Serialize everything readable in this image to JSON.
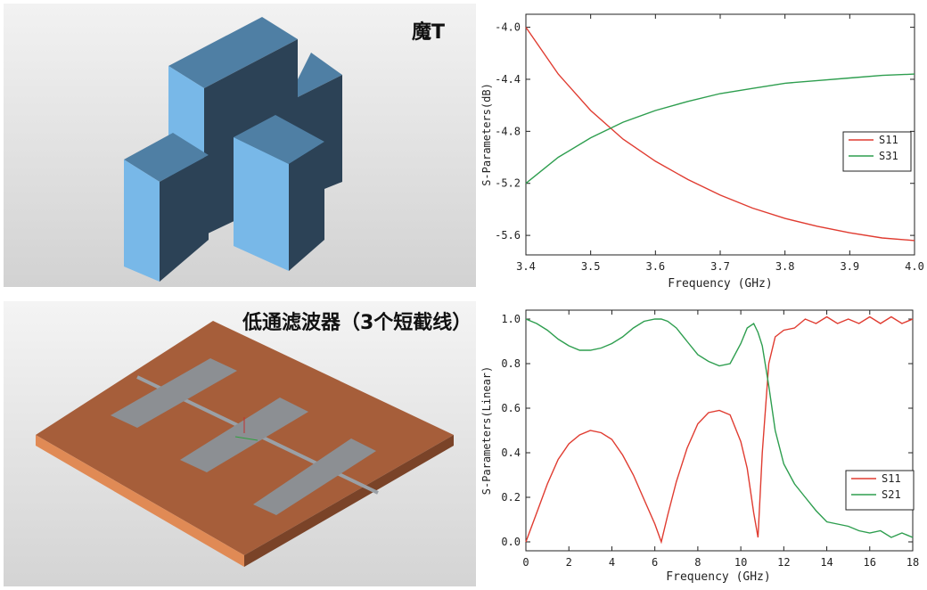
{
  "panels": {
    "magic_t": {
      "title": "魔T"
    },
    "lowpass": {
      "title": "低通滤波器（3个短截线）"
    }
  },
  "chart_data": [
    {
      "type": "line",
      "xlabel": "Frequency (GHz)",
      "ylabel": "S-Parameters(dB)",
      "xlim": [
        3.4,
        4.0
      ],
      "ylim": [
        -5.75,
        -3.9
      ],
      "xticks": [
        "3.4",
        "3.5",
        "3.6",
        "3.7",
        "3.8",
        "3.9",
        "4.0"
      ],
      "yticks": [
        "-4.0",
        "-4.4",
        "-4.8",
        "-5.2",
        "-5.6"
      ],
      "xtick_values": [
        3.4,
        3.5,
        3.6,
        3.7,
        3.8,
        3.9,
        4.0
      ],
      "ytick_values": [
        -4.0,
        -4.4,
        -4.8,
        -5.2,
        -5.6
      ],
      "grid": false,
      "legend_position": "right",
      "series": [
        {
          "name": "S11",
          "color": "#e03c31",
          "x": [
            3.4,
            3.45,
            3.5,
            3.55,
            3.6,
            3.65,
            3.7,
            3.75,
            3.8,
            3.85,
            3.9,
            3.95,
            4.0
          ],
          "values": [
            -4.0,
            -4.36,
            -4.64,
            -4.86,
            -5.03,
            -5.17,
            -5.29,
            -5.39,
            -5.47,
            -5.53,
            -5.58,
            -5.62,
            -5.64
          ]
        },
        {
          "name": "S31",
          "color": "#2e9e4f",
          "x": [
            3.4,
            3.45,
            3.5,
            3.55,
            3.6,
            3.65,
            3.7,
            3.75,
            3.8,
            3.85,
            3.9,
            3.95,
            4.0
          ],
          "values": [
            -5.2,
            -5.0,
            -4.85,
            -4.73,
            -4.64,
            -4.57,
            -4.51,
            -4.47,
            -4.43,
            -4.41,
            -4.39,
            -4.37,
            -4.36
          ]
        }
      ]
    },
    {
      "type": "line",
      "xlabel": "Frequency (GHz)",
      "ylabel": "S-Parameters(Linear)",
      "xlim": [
        0,
        18
      ],
      "ylim": [
        -0.04,
        1.04
      ],
      "xticks": [
        "0",
        "2",
        "4",
        "6",
        "8",
        "10",
        "12",
        "14",
        "16",
        "18"
      ],
      "yticks": [
        "0.0",
        "0.2",
        "0.4",
        "0.6",
        "0.8",
        "1.0"
      ],
      "xtick_values": [
        0,
        2,
        4,
        6,
        8,
        10,
        12,
        14,
        16,
        18
      ],
      "ytick_values": [
        0.0,
        0.2,
        0.4,
        0.6,
        0.8,
        1.0
      ],
      "grid": false,
      "legend_position": "bottom-right",
      "series": [
        {
          "name": "S11",
          "color": "#e03c31",
          "x": [
            0,
            0.5,
            1,
            1.5,
            2,
            2.5,
            3,
            3.5,
            4,
            4.5,
            5,
            5.5,
            6,
            6.3,
            6.6,
            7,
            7.5,
            8,
            8.5,
            9,
            9.5,
            10,
            10.3,
            10.6,
            10.8,
            11,
            11.3,
            11.6,
            12,
            12.5,
            13,
            13.5,
            14,
            14.5,
            15,
            15.5,
            16,
            16.5,
            17,
            17.5,
            18
          ],
          "values": [
            0.0,
            0.13,
            0.26,
            0.37,
            0.44,
            0.48,
            0.5,
            0.49,
            0.46,
            0.39,
            0.3,
            0.19,
            0.08,
            0.0,
            0.12,
            0.27,
            0.42,
            0.53,
            0.58,
            0.59,
            0.57,
            0.45,
            0.33,
            0.13,
            0.02,
            0.4,
            0.8,
            0.92,
            0.95,
            0.96,
            1.0,
            0.98,
            1.01,
            0.98,
            1.0,
            0.98,
            1.01,
            0.98,
            1.01,
            0.98,
            1.0
          ]
        },
        {
          "name": "S21",
          "color": "#2e9e4f",
          "x": [
            0,
            0.5,
            1,
            1.5,
            2,
            2.5,
            3,
            3.5,
            4,
            4.5,
            5,
            5.5,
            6,
            6.3,
            6.6,
            7,
            7.5,
            8,
            8.5,
            9,
            9.5,
            10,
            10.3,
            10.6,
            10.8,
            11,
            11.3,
            11.6,
            12,
            12.5,
            13,
            13.5,
            14,
            14.5,
            15,
            15.5,
            16,
            16.5,
            17,
            17.5,
            18
          ],
          "values": [
            1.0,
            0.98,
            0.95,
            0.91,
            0.88,
            0.86,
            0.86,
            0.87,
            0.89,
            0.92,
            0.96,
            0.99,
            1.0,
            1.0,
            0.99,
            0.96,
            0.9,
            0.84,
            0.81,
            0.79,
            0.8,
            0.89,
            0.96,
            0.98,
            0.94,
            0.88,
            0.7,
            0.5,
            0.35,
            0.26,
            0.2,
            0.14,
            0.09,
            0.08,
            0.07,
            0.05,
            0.04,
            0.05,
            0.02,
            0.04,
            0.02
          ]
        }
      ]
    }
  ]
}
